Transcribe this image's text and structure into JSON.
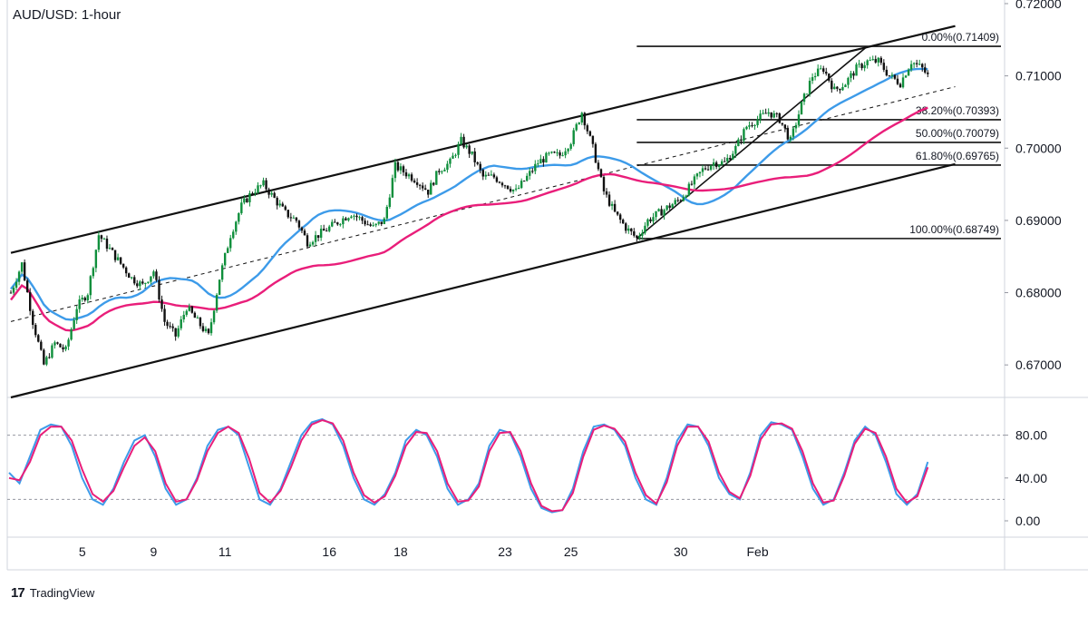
{
  "header": {
    "title": "AUD/USD: 1-hour"
  },
  "footer": {
    "brand_logo": "17",
    "brand_name": "TradingView"
  },
  "colors": {
    "up_candle": "#0f8f3c",
    "down_candle": "#111111",
    "sma_fast": "#3d9be9",
    "sma_slow": "#e91e7a",
    "stoch_k": "#3d9be9",
    "stoch_d": "#e91e7a",
    "grid": "#e0e3eb"
  },
  "chart_data": [
    {
      "type": "candlestick",
      "title": "AUD/USD: 1-hour",
      "y_axis_ticks": [
        "0.72000",
        "0.71000",
        "0.70000",
        "0.69000",
        "0.68000",
        "0.67000"
      ],
      "ylim": [
        0.6655,
        0.7205
      ],
      "x_axis_ticks": [
        "5",
        "9",
        "11",
        "16",
        "18",
        "23",
        "25",
        "30",
        "Feb"
      ],
      "fibonacci_levels": [
        {
          "label": "0.00%(0.71409)",
          "value": 0.71409
        },
        {
          "label": "38.20%(0.70393)",
          "value": 0.70393
        },
        {
          "label": "50.00%(0.70079)",
          "value": 0.70079
        },
        {
          "label": "61.80%(0.69765)",
          "value": 0.69765
        },
        {
          "label": "100.00%(0.68749)",
          "value": 0.68749
        }
      ],
      "price_path": [
        [
          0,
          0.68
        ],
        [
          2,
          0.684
        ],
        [
          4,
          0.676
        ],
        [
          6,
          0.67
        ],
        [
          8,
          0.673
        ],
        [
          10,
          0.672
        ],
        [
          12,
          0.678
        ],
        [
          14,
          0.68
        ],
        [
          16,
          0.688
        ],
        [
          18,
          0.686
        ],
        [
          20,
          0.684
        ],
        [
          22,
          0.682
        ],
        [
          24,
          0.681
        ],
        [
          26,
          0.683
        ],
        [
          28,
          0.676
        ],
        [
          30,
          0.674
        ],
        [
          32,
          0.678
        ],
        [
          34,
          0.676
        ],
        [
          36,
          0.674
        ],
        [
          38,
          0.682
        ],
        [
          40,
          0.688
        ],
        [
          42,
          0.692
        ],
        [
          44,
          0.694
        ],
        [
          46,
          0.695
        ],
        [
          48,
          0.693
        ],
        [
          50,
          0.691
        ],
        [
          52,
          0.69
        ],
        [
          54,
          0.687
        ],
        [
          56,
          0.688
        ],
        [
          58,
          0.689
        ],
        [
          60,
          0.69
        ],
        [
          62,
          0.691
        ],
        [
          64,
          0.69
        ],
        [
          66,
          0.689
        ],
        [
          68,
          0.69
        ],
        [
          70,
          0.6975
        ],
        [
          72,
          0.6965
        ],
        [
          74,
          0.6955
        ],
        [
          76,
          0.694
        ],
        [
          78,
          0.697
        ],
        [
          80,
          0.698
        ],
        [
          82,
          0.701
        ],
        [
          84,
          0.699
        ],
        [
          86,
          0.696
        ],
        [
          88,
          0.696
        ],
        [
          90,
          0.695
        ],
        [
          92,
          0.694
        ],
        [
          94,
          0.696
        ],
        [
          96,
          0.698
        ],
        [
          98,
          0.699
        ],
        [
          100,
          0.699
        ],
        [
          102,
          0.701
        ],
        [
          104,
          0.705
        ],
        [
          106,
          0.7
        ],
        [
          108,
          0.694
        ],
        [
          110,
          0.691
        ],
        [
          112,
          0.689
        ],
        [
          114,
          0.6875
        ],
        [
          116,
          0.69
        ],
        [
          118,
          0.691
        ],
        [
          120,
          0.692
        ],
        [
          122,
          0.693
        ],
        [
          124,
          0.695
        ],
        [
          126,
          0.697
        ],
        [
          128,
          0.698
        ],
        [
          130,
          0.698
        ],
        [
          132,
          0.7
        ],
        [
          134,
          0.703
        ],
        [
          136,
          0.704
        ],
        [
          138,
          0.705
        ],
        [
          140,
          0.704
        ],
        [
          142,
          0.701
        ],
        [
          144,
          0.706
        ],
        [
          146,
          0.71
        ],
        [
          148,
          0.711
        ],
        [
          150,
          0.708
        ],
        [
          152,
          0.709
        ],
        [
          154,
          0.711
        ],
        [
          156,
          0.712
        ],
        [
          158,
          0.712
        ],
        [
          160,
          0.71
        ],
        [
          162,
          0.709
        ],
        [
          164,
          0.712
        ],
        [
          166,
          0.711
        ],
        [
          167,
          0.71
        ]
      ],
      "series": [
        {
          "name": "",
          "role": "fast moving average"
        },
        {
          "name": "",
          "role": "slow moving average"
        }
      ]
    },
    {
      "type": "line",
      "y_axis_ticks": [
        "80.00",
        "40.00",
        "0.00"
      ],
      "ylim": [
        0,
        100
      ],
      "reference_lines": [
        80,
        20
      ],
      "series": [
        {
          "name": "",
          "values": [
            45,
            35,
            60,
            85,
            90,
            88,
            70,
            40,
            20,
            15,
            30,
            55,
            75,
            80,
            60,
            30,
            15,
            20,
            40,
            70,
            85,
            88,
            80,
            50,
            20,
            15,
            30,
            55,
            80,
            92,
            95,
            90,
            70,
            40,
            20,
            15,
            25,
            45,
            75,
            85,
            80,
            60,
            30,
            15,
            20,
            35,
            70,
            85,
            82,
            60,
            30,
            12,
            8,
            10,
            30,
            65,
            88,
            90,
            85,
            70,
            40,
            20,
            15,
            40,
            75,
            90,
            88,
            70,
            40,
            25,
            20,
            45,
            80,
            92,
            90,
            85,
            60,
            30,
            15,
            20,
            45,
            75,
            88,
            80,
            55,
            25,
            15,
            25,
            55
          ]
        },
        {
          "name": "",
          "values": [
            40,
            38,
            55,
            80,
            88,
            88,
            75,
            48,
            25,
            18,
            28,
            50,
            70,
            78,
            65,
            35,
            18,
            20,
            38,
            65,
            82,
            88,
            82,
            58,
            26,
            17,
            28,
            50,
            75,
            90,
            94,
            91,
            75,
            45,
            24,
            17,
            23,
            42,
            70,
            83,
            82,
            65,
            35,
            18,
            19,
            32,
            65,
            82,
            83,
            65,
            35,
            14,
            9,
            10,
            26,
            60,
            85,
            89,
            86,
            74,
            45,
            24,
            16,
            36,
            70,
            88,
            88,
            74,
            45,
            27,
            21,
            42,
            76,
            90,
            91,
            86,
            65,
            35,
            17,
            19,
            42,
            72,
            86,
            82,
            60,
            30,
            17,
            23,
            50
          ]
        }
      ]
    }
  ]
}
